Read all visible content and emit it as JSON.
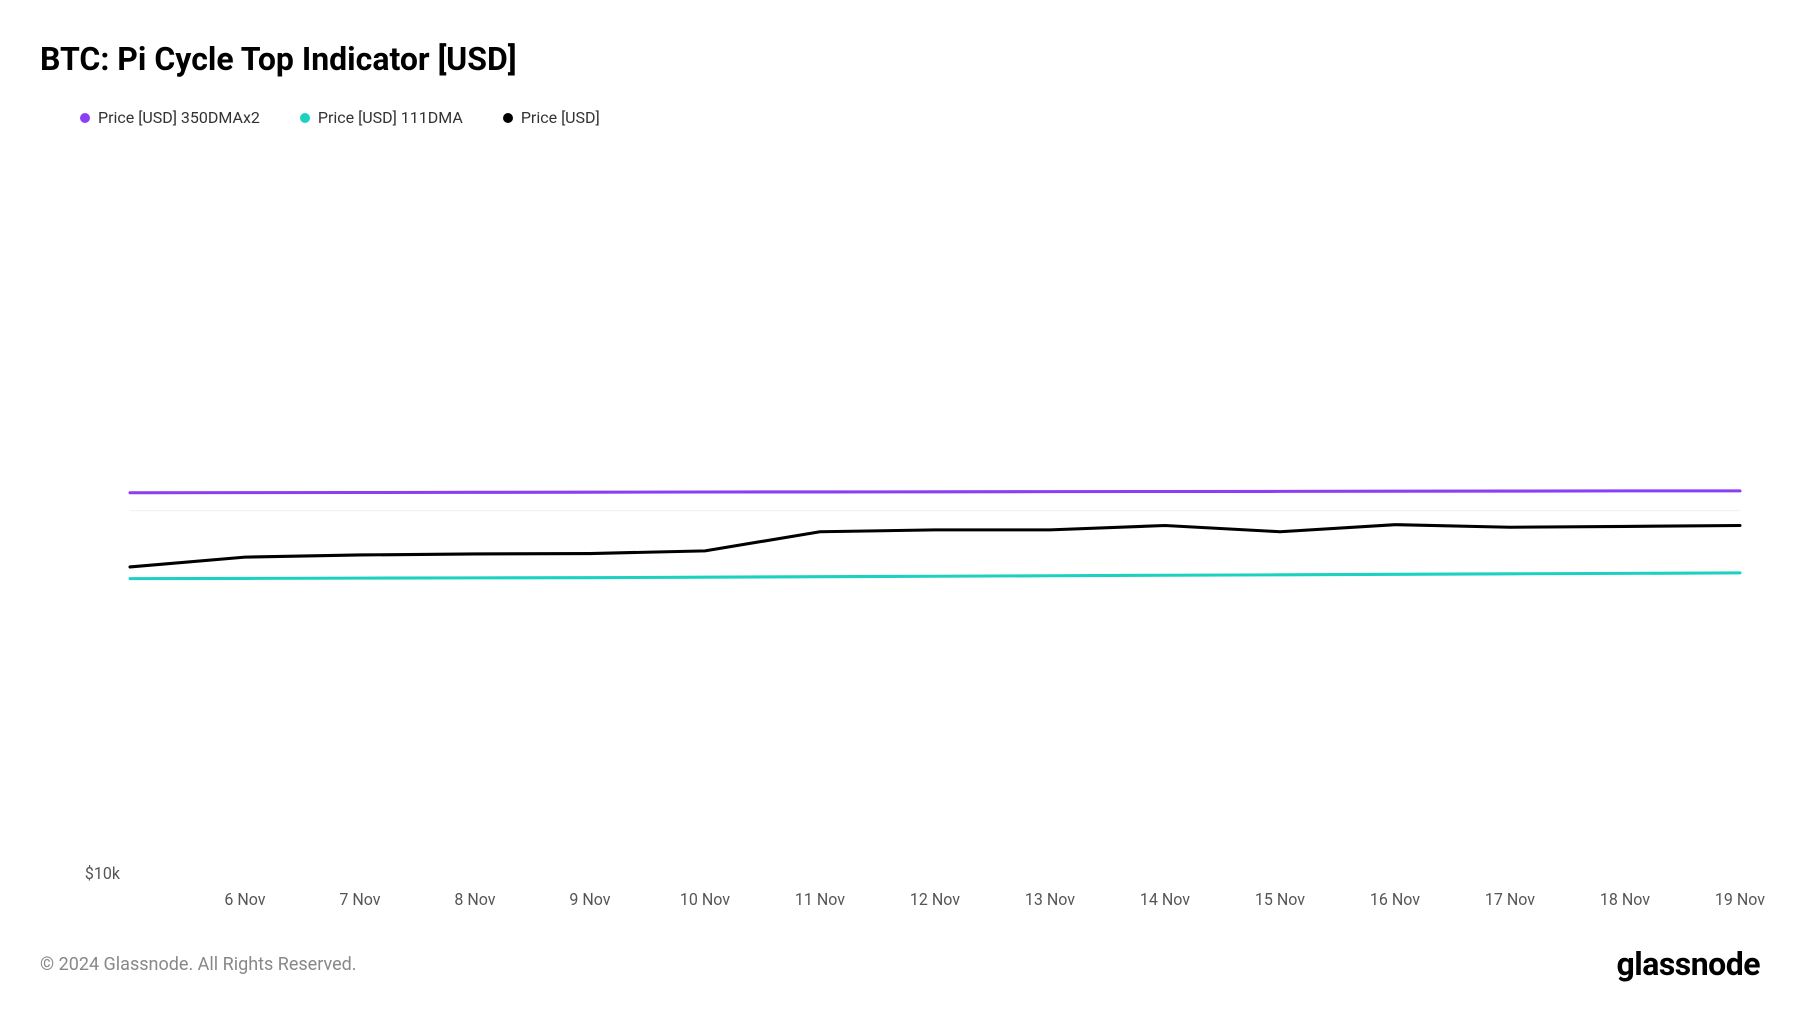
{
  "title": "BTC: Pi Cycle Top Indicator [USD]",
  "legend": [
    {
      "label": "Price [USD] 350DMAx2",
      "color": "#8b3ff5"
    },
    {
      "label": "Price [USD] 111DMA",
      "color": "#1dd1c1"
    },
    {
      "label": "Price [USD]",
      "color": "#000000"
    }
  ],
  "chart": {
    "type": "line",
    "background_color": "#ffffff",
    "grid_color": "#f0f0f0",
    "x_labels": [
      "6 Nov",
      "7 Nov",
      "8 Nov",
      "9 Nov",
      "10 Nov",
      "11 Nov",
      "12 Nov",
      "13 Nov",
      "14 Nov",
      "15 Nov",
      "16 Nov",
      "17 Nov",
      "18 Nov",
      "19 Nov"
    ],
    "x_indices_for_labels": [
      1,
      2,
      3,
      4,
      5,
      6,
      7,
      8,
      9,
      10,
      11,
      12,
      13,
      14
    ],
    "y_scale": "log",
    "y_min_log": 4.0,
    "y_max_log": 6.0,
    "y_tick": {
      "value": 10000,
      "label": "$10k"
    },
    "gridline_y_value": 100000,
    "series": [
      {
        "name": "350DMAx2",
        "color": "#8b3ff5",
        "width": 3,
        "x": [
          0,
          1,
          2,
          3,
          4,
          5,
          6,
          7,
          8,
          9,
          10,
          11,
          12,
          13,
          14
        ],
        "y": [
          112000,
          112100,
          112200,
          112300,
          112400,
          112500,
          112600,
          112700,
          112800,
          112900,
          113000,
          113100,
          113200,
          113300,
          113300
        ]
      },
      {
        "name": "111DMA",
        "color": "#1dd1c1",
        "width": 3,
        "x": [
          0,
          1,
          2,
          3,
          4,
          5,
          6,
          7,
          8,
          9,
          10,
          11,
          12,
          13,
          14
        ],
        "y": [
          65000,
          65100,
          65200,
          65300,
          65400,
          65600,
          65800,
          66000,
          66200,
          66400,
          66600,
          66800,
          67000,
          67200,
          67400
        ]
      },
      {
        "name": "Price",
        "color": "#000000",
        "width": 3,
        "x": [
          0,
          1,
          2,
          3,
          4,
          5,
          6,
          7,
          8,
          9,
          10,
          11,
          12,
          13,
          14
        ],
        "y": [
          70000,
          74500,
          75500,
          76000,
          76200,
          77500,
          87500,
          88500,
          88500,
          91000,
          87500,
          91500,
          90000,
          90500,
          91000
        ]
      }
    ],
    "axis_fontsize": 16,
    "axis_color": "#555555",
    "line_width": 3
  },
  "footer": {
    "copyright": "© 2024 Glassnode. All Rights Reserved.",
    "brand": "glassnode"
  }
}
